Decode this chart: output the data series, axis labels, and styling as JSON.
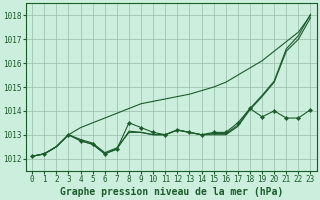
{
  "background_color": "#cceedd",
  "plot_bg_color": "#cceedd",
  "grid_color": "#99bbaa",
  "line_color": "#1a5c2a",
  "xlabel": "Graphe pression niveau de la mer (hPa)",
  "ylim": [
    1011.5,
    1018.5
  ],
  "xlim": [
    -0.5,
    23.5
  ],
  "yticks": [
    1012,
    1013,
    1014,
    1015,
    1016,
    1017,
    1018
  ],
  "xticks": [
    0,
    1,
    2,
    3,
    4,
    5,
    6,
    7,
    8,
    9,
    10,
    11,
    12,
    13,
    14,
    15,
    16,
    17,
    18,
    19,
    20,
    21,
    22,
    23
  ],
  "series": [
    {
      "x": [
        0,
        1,
        2,
        3,
        4,
        5,
        6,
        7,
        8,
        9,
        10,
        11,
        12,
        13,
        14,
        15,
        16,
        17,
        18,
        19,
        20,
        21,
        22,
        23
      ],
      "y": [
        1012.1,
        1012.2,
        1012.5,
        1013.0,
        1013.3,
        1013.5,
        1013.7,
        1013.9,
        1014.1,
        1014.3,
        1014.4,
        1014.5,
        1014.6,
        1014.7,
        1014.85,
        1015.0,
        1015.2,
        1015.5,
        1015.8,
        1016.1,
        1016.5,
        1016.9,
        1017.3,
        1018.0
      ],
      "marker": false
    },
    {
      "x": [
        0,
        1,
        2,
        3,
        4,
        5,
        6,
        7,
        8,
        9,
        10,
        11,
        12,
        13,
        14,
        15,
        16,
        17,
        18,
        19,
        20,
        21,
        22,
        23
      ],
      "y": [
        1012.1,
        1012.2,
        1012.5,
        1013.0,
        1012.75,
        1012.6,
        1012.2,
        1012.4,
        1013.5,
        1013.3,
        1013.1,
        1013.0,
        1013.2,
        1013.1,
        1013.0,
        1013.1,
        1013.1,
        1013.5,
        1014.1,
        1013.75,
        1014.0,
        1013.7,
        1013.7,
        1014.05
      ],
      "marker": true
    },
    {
      "x": [
        0,
        1,
        2,
        3,
        4,
        5,
        6,
        7,
        8,
        9,
        10,
        11,
        12,
        13,
        14,
        15,
        16,
        17,
        18,
        19,
        20,
        21,
        22,
        23
      ],
      "y": [
        1012.1,
        1012.2,
        1012.5,
        1013.0,
        1012.75,
        1012.6,
        1012.2,
        1012.4,
        1013.15,
        1013.1,
        1013.0,
        1013.0,
        1013.2,
        1013.1,
        1013.0,
        1013.0,
        1013.0,
        1013.35,
        1014.05,
        1014.6,
        1015.2,
        1016.5,
        1017.0,
        1017.9
      ],
      "marker": false
    },
    {
      "x": [
        0,
        1,
        2,
        3,
        4,
        5,
        6,
        7,
        8,
        9,
        10,
        11,
        12,
        13,
        14,
        15,
        16,
        17,
        18,
        19,
        20,
        21,
        22,
        23
      ],
      "y": [
        1012.1,
        1012.2,
        1012.5,
        1013.0,
        1012.8,
        1012.65,
        1012.25,
        1012.45,
        1013.1,
        1013.1,
        1013.0,
        1013.0,
        1013.2,
        1013.1,
        1013.0,
        1013.05,
        1013.05,
        1013.4,
        1014.1,
        1014.65,
        1015.25,
        1016.6,
        1017.15,
        1018.05
      ],
      "marker": false
    }
  ],
  "marker_points": [
    [
      0,
      1012.1
    ],
    [
      1,
      1012.2
    ],
    [
      3,
      1013.0
    ],
    [
      4,
      1012.75
    ],
    [
      5,
      1012.6
    ],
    [
      6,
      1012.2
    ],
    [
      7,
      1012.4
    ],
    [
      8,
      1013.5
    ],
    [
      9,
      1013.3
    ],
    [
      10,
      1013.1
    ],
    [
      11,
      1013.0
    ],
    [
      12,
      1013.2
    ],
    [
      13,
      1013.1
    ],
    [
      14,
      1013.0
    ],
    [
      15,
      1013.1
    ],
    [
      16,
      1013.1
    ],
    [
      17,
      1013.5
    ],
    [
      18,
      1014.1
    ],
    [
      19,
      1013.75
    ],
    [
      20,
      1014.0
    ],
    [
      21,
      1013.7
    ],
    [
      22,
      1013.7
    ],
    [
      23,
      1014.05
    ]
  ],
  "xlabel_fontsize": 7,
  "tick_fontsize": 5.5,
  "xlabel_color": "#1a5c2a",
  "tick_color": "#1a5c2a",
  "spine_color": "#1a5c2a"
}
